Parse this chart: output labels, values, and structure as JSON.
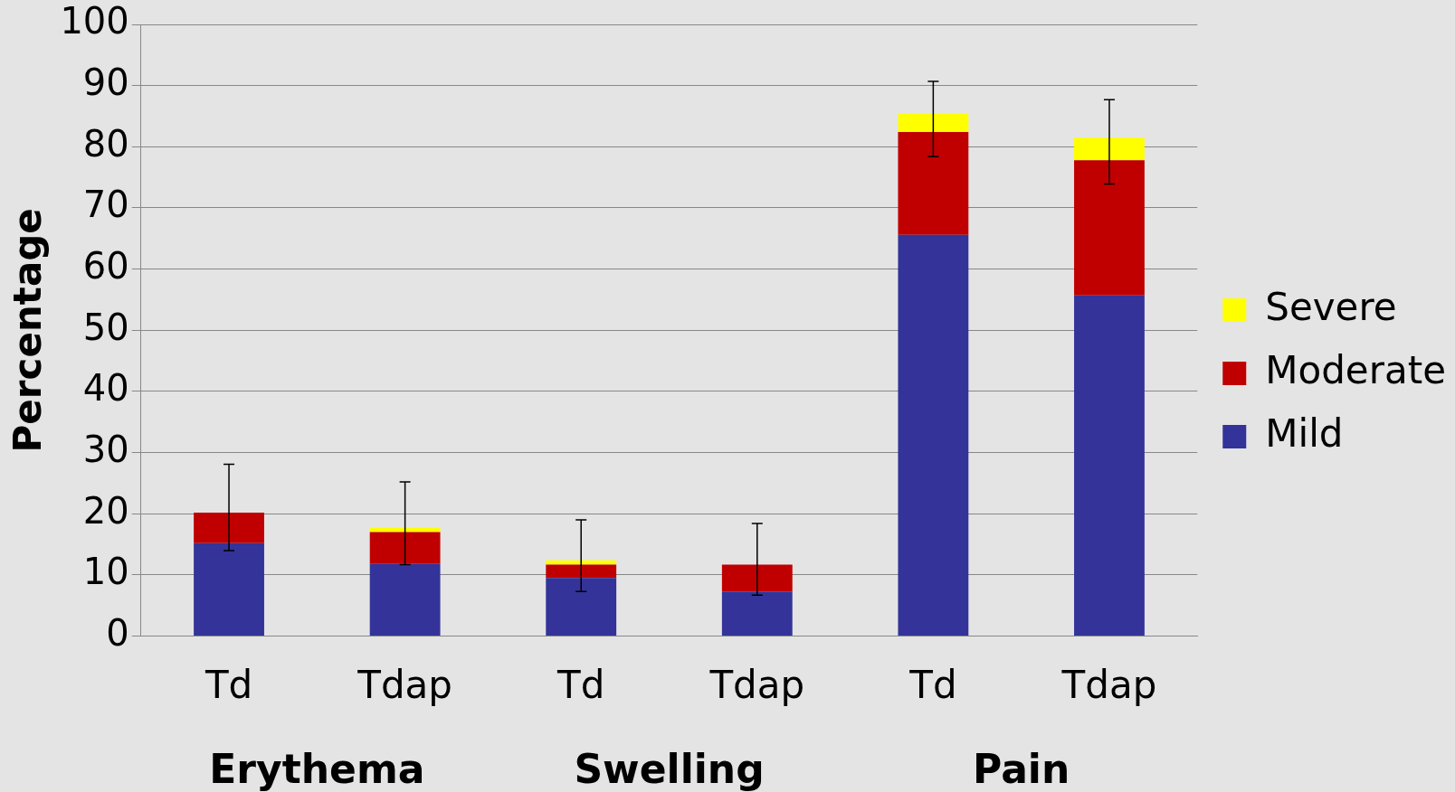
{
  "chart_data": {
    "type": "bar",
    "ylabel": "Percentage",
    "categories": [
      "Td",
      "Tdap",
      "Td",
      "Tdap",
      "Td",
      "Tdap"
    ],
    "stacked": true,
    "grid": "y",
    "legend": "right",
    "ylim": [
      0,
      100
    ],
    "yticks": [
      0,
      10,
      20,
      30,
      40,
      50,
      60,
      70,
      80,
      90,
      100
    ],
    "series": [
      {
        "name": "Mild",
        "color": "#333399",
        "values": [
          15.2,
          11.8,
          9.5,
          7.3,
          65.6,
          55.7
        ]
      },
      {
        "name": "Moderate",
        "color": "#c00000",
        "values": [
          5.0,
          5.2,
          2.2,
          4.4,
          16.8,
          22.1
        ]
      },
      {
        "name": "Severe",
        "color": "#ffff00",
        "values": [
          0,
          0.7,
          0.7,
          0,
          3.0,
          3.7
        ],
        "errors": [
          [
            14.0,
            28.1
          ],
          [
            11.7,
            25.2
          ],
          [
            7.3,
            19.0
          ],
          [
            6.7,
            18.4
          ],
          [
            78.4,
            90.7
          ],
          [
            73.9,
            87.7
          ]
        ]
      }
    ],
    "annotations": [
      "Erythema",
      "Swelling",
      "Pain"
    ]
  }
}
